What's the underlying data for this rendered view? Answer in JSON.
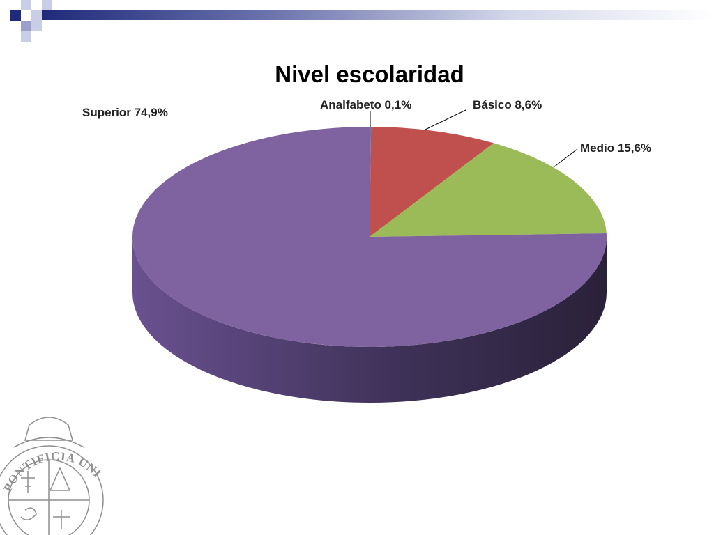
{
  "chart_data": {
    "type": "pie",
    "title": "Nivel escolaridad",
    "three_d": true,
    "slices": [
      {
        "label": "Analfabeto",
        "value": 0.1,
        "display": "Analfabeto  0,1%",
        "color": "#4F81BD"
      },
      {
        "label": "Básico",
        "value": 8.6,
        "display": "Básico  8,6%",
        "color": "#C0504D"
      },
      {
        "label": "Medio",
        "value": 15.6,
        "display": "Medio  15,6%",
        "color": "#9BBB59"
      },
      {
        "label": "Superior",
        "value": 74.9,
        "display": "Superior 74,9%",
        "color": "#7F62A0"
      }
    ],
    "side_color_light": "#6A5190",
    "side_color_dark": "#2F2540",
    "leader_line_color": "#000000"
  },
  "theme": {
    "header_dark": "#1F2A7A",
    "header_light": "#C9CDE6",
    "seal_color": "#8E8E8E"
  },
  "seal": {
    "ring_text": "PONTIFICIA UNIVERSIDAD CATÓLICA"
  }
}
